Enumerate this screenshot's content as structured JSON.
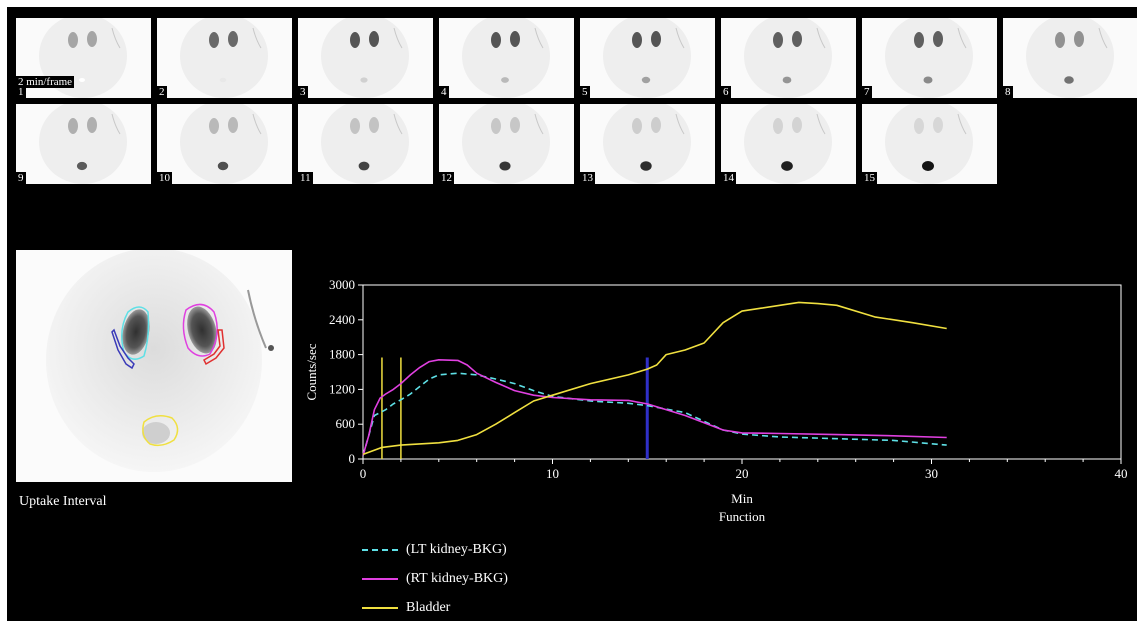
{
  "frames": {
    "per_frame_label": "2 min/frame",
    "items": [
      {
        "n": "1",
        "k": 0.45,
        "b": 0.0
      },
      {
        "n": "2",
        "k": 0.75,
        "b": 0.1
      },
      {
        "n": "3",
        "k": 0.85,
        "b": 0.2
      },
      {
        "n": "4",
        "k": 0.85,
        "b": 0.3
      },
      {
        "n": "5",
        "k": 0.85,
        "b": 0.4
      },
      {
        "n": "6",
        "k": 0.8,
        "b": 0.45
      },
      {
        "n": "7",
        "k": 0.8,
        "b": 0.5
      },
      {
        "n": "8",
        "k": 0.55,
        "b": 0.6
      },
      {
        "n": "9",
        "k": 0.4,
        "b": 0.7
      },
      {
        "n": "10",
        "k": 0.35,
        "b": 0.75
      },
      {
        "n": "11",
        "k": 0.3,
        "b": 0.8
      },
      {
        "n": "12",
        "k": 0.28,
        "b": 0.85
      },
      {
        "n": "13",
        "k": 0.25,
        "b": 0.9
      },
      {
        "n": "14",
        "k": 0.22,
        "b": 0.95
      },
      {
        "n": "15",
        "k": 0.2,
        "b": 1.0
      }
    ]
  },
  "roi_image": {
    "caption": "Uptake Interval",
    "roi_colors": {
      "lt_kidney": "#5ee0e6",
      "rt_kidney": "#e040e0",
      "lt_bkg": "#3a3ab8",
      "rt_bkg": "#e03030",
      "bladder": "#f0e040"
    }
  },
  "chart_data": {
    "type": "line",
    "xlabel": "Min",
    "subtitle": "Function",
    "ylabel": "Counts/sec",
    "xlim": [
      0,
      40
    ],
    "ylim": [
      0,
      3000
    ],
    "xticks": [
      0,
      10,
      20,
      30,
      40
    ],
    "yticks": [
      0,
      600,
      1200,
      1800,
      2400,
      3000
    ],
    "uptake_markers": {
      "x": [
        1,
        2
      ],
      "color": "#f0e040",
      "top": 1750
    },
    "time_marker": {
      "x": 15,
      "color": "#3030c8"
    },
    "series": [
      {
        "name": "(LT kidney-BKG)",
        "color": "#5ee0e6",
        "dash": true,
        "x": [
          0,
          0.3,
          0.6,
          0.9,
          1.2,
          1.6,
          2.0,
          2.5,
          3.0,
          3.5,
          4.0,
          5.0,
          6.0,
          7.0,
          8.0,
          9.0,
          10.0,
          12.0,
          14.0,
          15.0,
          17.0,
          19.0,
          20.0,
          22.0,
          25.0,
          28.0,
          30.8
        ],
        "y": [
          60,
          400,
          750,
          800,
          850,
          950,
          1020,
          1120,
          1250,
          1380,
          1450,
          1480,
          1450,
          1380,
          1300,
          1180,
          1080,
          1000,
          960,
          920,
          800,
          500,
          430,
          380,
          350,
          320,
          240
        ]
      },
      {
        "name": "(RT kidney-BKG)",
        "color": "#e040e0",
        "dash": false,
        "x": [
          0,
          0.3,
          0.6,
          0.9,
          1.2,
          1.6,
          2.0,
          2.5,
          3.0,
          3.5,
          4.0,
          5.0,
          5.5,
          6.0,
          7.0,
          8.0,
          9.0,
          10.0,
          12.0,
          14.0,
          15.0,
          17.0,
          19.0,
          20.0,
          22.0,
          25.0,
          28.0,
          30.8
        ],
        "y": [
          60,
          400,
          850,
          1050,
          1120,
          1200,
          1300,
          1450,
          1580,
          1680,
          1710,
          1700,
          1620,
          1480,
          1320,
          1180,
          1100,
          1060,
          1020,
          1010,
          950,
          750,
          500,
          450,
          440,
          420,
          400,
          370
        ]
      },
      {
        "name": "Bladder",
        "color": "#f0e040",
        "dash": false,
        "x": [
          0,
          1.0,
          2.0,
          3.0,
          4.0,
          5.0,
          6.0,
          7.0,
          8.0,
          9.0,
          10.0,
          12.0,
          14.0,
          15.0,
          15.5,
          16.0,
          17.0,
          18.0,
          19.0,
          20.0,
          21.0,
          22.0,
          23.0,
          24.0,
          25.0,
          27.0,
          29.0,
          30.8
        ],
        "y": [
          80,
          200,
          240,
          260,
          280,
          320,
          420,
          600,
          800,
          1000,
          1100,
          1300,
          1450,
          1550,
          1620,
          1800,
          1880,
          2000,
          2350,
          2550,
          2600,
          2650,
          2700,
          2680,
          2650,
          2450,
          2350,
          2250
        ]
      }
    ]
  }
}
